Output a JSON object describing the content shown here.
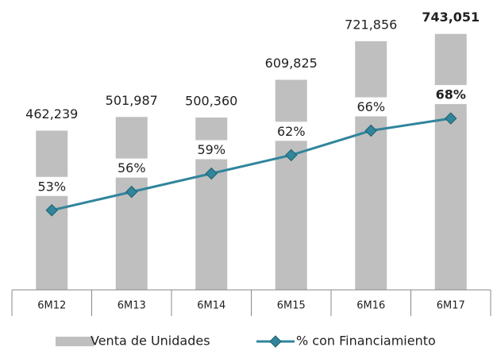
{
  "chart_data": {
    "type": "bar-line",
    "categories": [
      "6M12",
      "6M13",
      "6M14",
      "6M15",
      "6M16",
      "6M17"
    ],
    "series": [
      {
        "name": "Venta de Unidades",
        "type": "bar",
        "axis": "y",
        "color": "#bfbfbf",
        "values": [
          462239,
          501987,
          500360,
          609825,
          721856,
          743051
        ],
        "value_labels": [
          "462,239",
          "501,987",
          "500,360",
          "609,825",
          "721,856",
          "743,051"
        ]
      },
      {
        "name": "% con Financiamiento",
        "type": "line",
        "axis": "y2",
        "color": "#31859c",
        "values": [
          53,
          56,
          59,
          62,
          66,
          68
        ],
        "value_labels": [
          "53%",
          "56%",
          "59%",
          "62%",
          "66%",
          "68%"
        ]
      }
    ],
    "ylim": [
      0,
      800000
    ],
    "y2lim": [
      40,
      85
    ],
    "legend": "bottom"
  }
}
